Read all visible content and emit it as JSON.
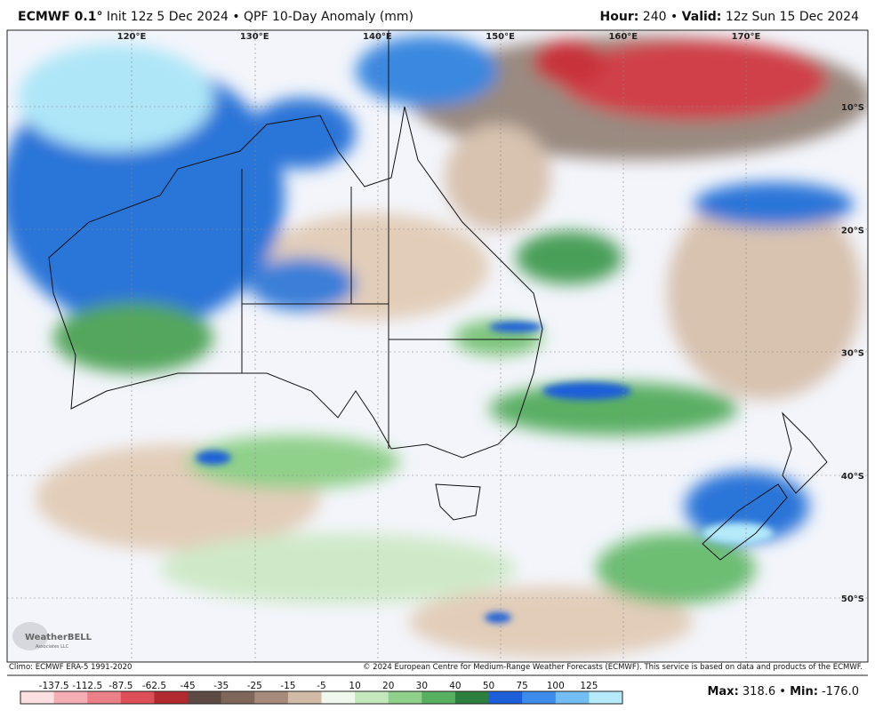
{
  "header": {
    "model": "ECMWF 0.1°",
    "title": "Init 12z 5 Dec 2024 • QPF 10-Day Anomaly (mm)",
    "hour_label": "Hour:",
    "hour": "240 •",
    "valid_label": "Valid:",
    "valid": "12z Sun 15 Dec 2024"
  },
  "map": {
    "longitude_labels": [
      "120°E",
      "130°E",
      "140°E",
      "150°E",
      "160°E",
      "170°E"
    ],
    "latitude_labels": [
      "10°S",
      "20°S",
      "30°S",
      "40°S",
      "50°S"
    ],
    "logo": "WeatherBELL",
    "logo_sub": "Associates LLC"
  },
  "footer": {
    "climo": "Climo: ECMWF ERA-5 1991-2020",
    "copyright": "© 2024 European Centre for Medium-Range Weather Forecasts (ECMWF). This service is based on data and products of the ECMWF.",
    "colorbar": {
      "labels": [
        -137.5,
        -112.5,
        -87.5,
        -62.5,
        -45,
        -35,
        -25,
        -15,
        -5,
        10,
        20,
        30,
        40,
        50,
        75,
        100,
        125
      ],
      "colors": [
        "#fde0e2",
        "#f5aeb3",
        "#ec8088",
        "#dc4f58",
        "#b02a30",
        "#5e4a44",
        "#7f665b",
        "#a68b7a",
        "#d2bba6",
        "#f0f8ee",
        "#c2e8bc",
        "#8fd08a",
        "#57b060",
        "#2c7f3e",
        "#1c5fd8",
        "#3d8cec",
        "#72bdf4",
        "#b4eafa"
      ]
    },
    "max_label": "Max:",
    "max": "318.6 •",
    "min_label": "Min:",
    "min": "-176.0"
  }
}
